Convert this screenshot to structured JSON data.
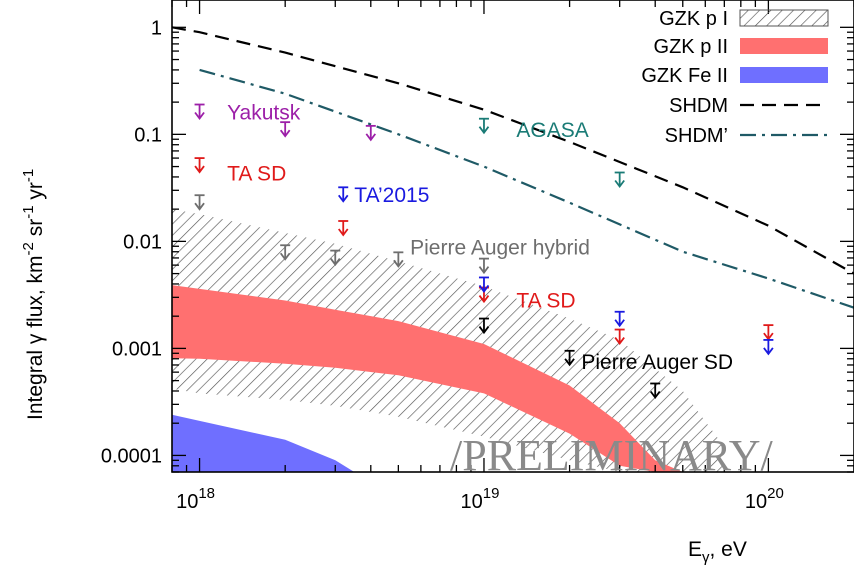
{
  "chart_data": {
    "type": "line",
    "xscale": "log",
    "yscale": "log",
    "xlim": [
      8e+17,
      2e+20
    ],
    "ylim": [
      7e-05,
      1.8
    ],
    "grid": false,
    "legend_placement": "top-right",
    "xlabel": {
      "base": "E",
      "sub": "γ",
      "rest": ", eV"
    },
    "ylabel": {
      "main": "Integral γ flux, km",
      "exp1": "-2",
      "mid1": " sr",
      "exp2": "-1",
      "mid2": " yr",
      "exp3": "-1"
    },
    "x_ticks": [
      {
        "value": 1e+18,
        "base": "10",
        "exp": "18"
      },
      {
        "value": 1e+19,
        "base": "10",
        "exp": "19"
      },
      {
        "value": 1e+20,
        "base": "10",
        "exp": "20"
      }
    ],
    "y_ticks": [
      {
        "value": 1,
        "label": "1"
      },
      {
        "value": 0.1,
        "label": "0.1"
      },
      {
        "value": 0.01,
        "label": "0.01"
      },
      {
        "value": 0.001,
        "label": "0.001"
      },
      {
        "value": 0.0001,
        "label": "0.0001"
      }
    ],
    "legend": [
      {
        "label": "GZK p I",
        "style": "hatch"
      },
      {
        "label": "GZK p II",
        "style": "band",
        "color": "#ff7070"
      },
      {
        "label": "GZK Fe II",
        "style": "band",
        "color": "#6f6fff"
      },
      {
        "label": "SHDM",
        "style": "dashed",
        "color": "#000000"
      },
      {
        "label": "SHDM’",
        "style": "dashdot",
        "color": "#1f5a66"
      }
    ],
    "bands": [
      {
        "name": "GZK p I",
        "style": "hatch",
        "color": "#444444",
        "x": [
          8e+17,
          1e+18,
          2e+18,
          3e+18,
          5e+18,
          1e+19,
          2e+19,
          3e+19,
          5e+19,
          7e+19
        ],
        "lower": [
          0.00042,
          0.00038,
          0.00033,
          0.00029,
          0.00023,
          0.00015,
          9e-05,
          7e-05,
          7e-05,
          7e-05
        ],
        "upper": [
          0.02,
          0.018,
          0.012,
          0.0095,
          0.0065,
          0.0038,
          0.0019,
          0.0012,
          0.0004,
          0.00012
        ]
      },
      {
        "name": "GZK p II",
        "style": "band",
        "color": "#ff7070",
        "x": [
          8e+17,
          1e+18,
          2e+18,
          3e+18,
          5e+18,
          1e+19,
          2e+19,
          3e+19,
          4e+19,
          5e+19
        ],
        "lower": [
          0.00081,
          0.0008,
          0.00072,
          0.00066,
          0.00056,
          0.00038,
          0.00016,
          8e-05,
          7e-05,
          7e-05
        ],
        "upper": [
          0.0039,
          0.0036,
          0.0028,
          0.0023,
          0.0018,
          0.0011,
          0.00045,
          0.0002,
          9e-05,
          7e-05
        ]
      },
      {
        "name": "GZK Fe II",
        "style": "band",
        "color": "#6f6fff",
        "x": [
          8e+17,
          1e+18,
          2e+18,
          3e+18,
          3.5e+18
        ],
        "lower": [
          7e-05,
          7e-05,
          7e-05,
          7e-05,
          7e-05
        ],
        "upper": [
          0.00024,
          0.00021,
          0.00014,
          9e-05,
          7e-05
        ]
      }
    ],
    "lines": [
      {
        "name": "SHDM",
        "style": "dashed",
        "color": "#000000",
        "x": [
          8e+17,
          1e+18,
          2e+18,
          5e+18,
          1e+19,
          2e+19,
          5e+19,
          1e+20,
          2e+20
        ],
        "y": [
          1.0,
          0.9,
          0.58,
          0.3,
          0.17,
          0.085,
          0.032,
          0.014,
          0.005
        ]
      },
      {
        "name": "SHDM’",
        "style": "dashdot",
        "color": "#1f5a66",
        "x": [
          1e+18,
          2e+18,
          5e+18,
          1e+19,
          2e+19,
          5e+19,
          1e+20,
          2e+20
        ],
        "y": [
          0.4,
          0.24,
          0.1,
          0.05,
          0.023,
          0.008,
          0.0045,
          0.0024
        ]
      }
    ],
    "upper_limits": [
      {
        "group": "Yakutsk",
        "color": "#9c1fa8",
        "x": [
          1e+18,
          2e+18,
          4e+18
        ],
        "y": [
          0.19,
          0.13,
          0.12
        ]
      },
      {
        "group": "AGASA",
        "color": "#1a7b76",
        "x": [
          1e+19,
          3e+19
        ],
        "y": [
          0.14,
          0.044
        ]
      },
      {
        "group": "TA SD (2013)",
        "color": "#e01a1a",
        "x": [
          1e+18,
          3.2e+18
        ],
        "y": [
          0.06,
          0.0155
        ]
      },
      {
        "group": "TA 2015",
        "color": "#1a1ae0",
        "x": [
          3.2e+18
        ],
        "y": [
          0.032
        ]
      },
      {
        "group": "Pierre Auger hybrid",
        "color": "#6e6e6e",
        "x": [
          1e+18,
          2e+18,
          3e+18,
          5e+18,
          1e+19
        ],
        "y": [
          0.027,
          0.0092,
          0.0082,
          0.0079,
          0.0069
        ]
      },
      {
        "group": "TA SD (2015)",
        "color": "#e01a1a",
        "x": [
          1e+19,
          3e+19,
          1e+20
        ],
        "y": [
          0.0037,
          0.0015,
          0.00165
        ]
      },
      {
        "group": "TA SD blue",
        "color": "#1a1ae0",
        "x": [
          1e+19,
          3e+19,
          1e+20
        ],
        "y": [
          0.0046,
          0.0022,
          0.0012
        ]
      },
      {
        "group": "Pierre Auger SD",
        "color": "#000000",
        "x": [
          1e+19,
          2e+19,
          4e+19
        ],
        "y": [
          0.0019,
          0.00095,
          0.00047
        ]
      }
    ],
    "annotations": [
      {
        "text": "Yakutsk",
        "color": "#9c1fa8",
        "x": 1.25e+18,
        "y": 0.16
      },
      {
        "text": "AGASA",
        "color": "#1a7b76",
        "x": 1.3e+19,
        "y": 0.11
      },
      {
        "text": "TA SD",
        "color": "#e01a1a",
        "x": 1.25e+18,
        "y": 0.043
      },
      {
        "text": "TA’2015",
        "color": "#1a1ae0",
        "x": 3.5e+18,
        "y": 0.027
      },
      {
        "text": "Pierre Auger hybrid",
        "color": "#6e6e6e",
        "x": 5.5e+18,
        "y": 0.0088
      },
      {
        "text": "TA SD",
        "color": "#e01a1a",
        "x": 1.3e+19,
        "y": 0.0028
      },
      {
        "text": "Pierre Auger SD",
        "color": "#000000",
        "x": 2.2e+19,
        "y": 0.00075
      }
    ],
    "watermark": "/PRELIMINARY/"
  }
}
